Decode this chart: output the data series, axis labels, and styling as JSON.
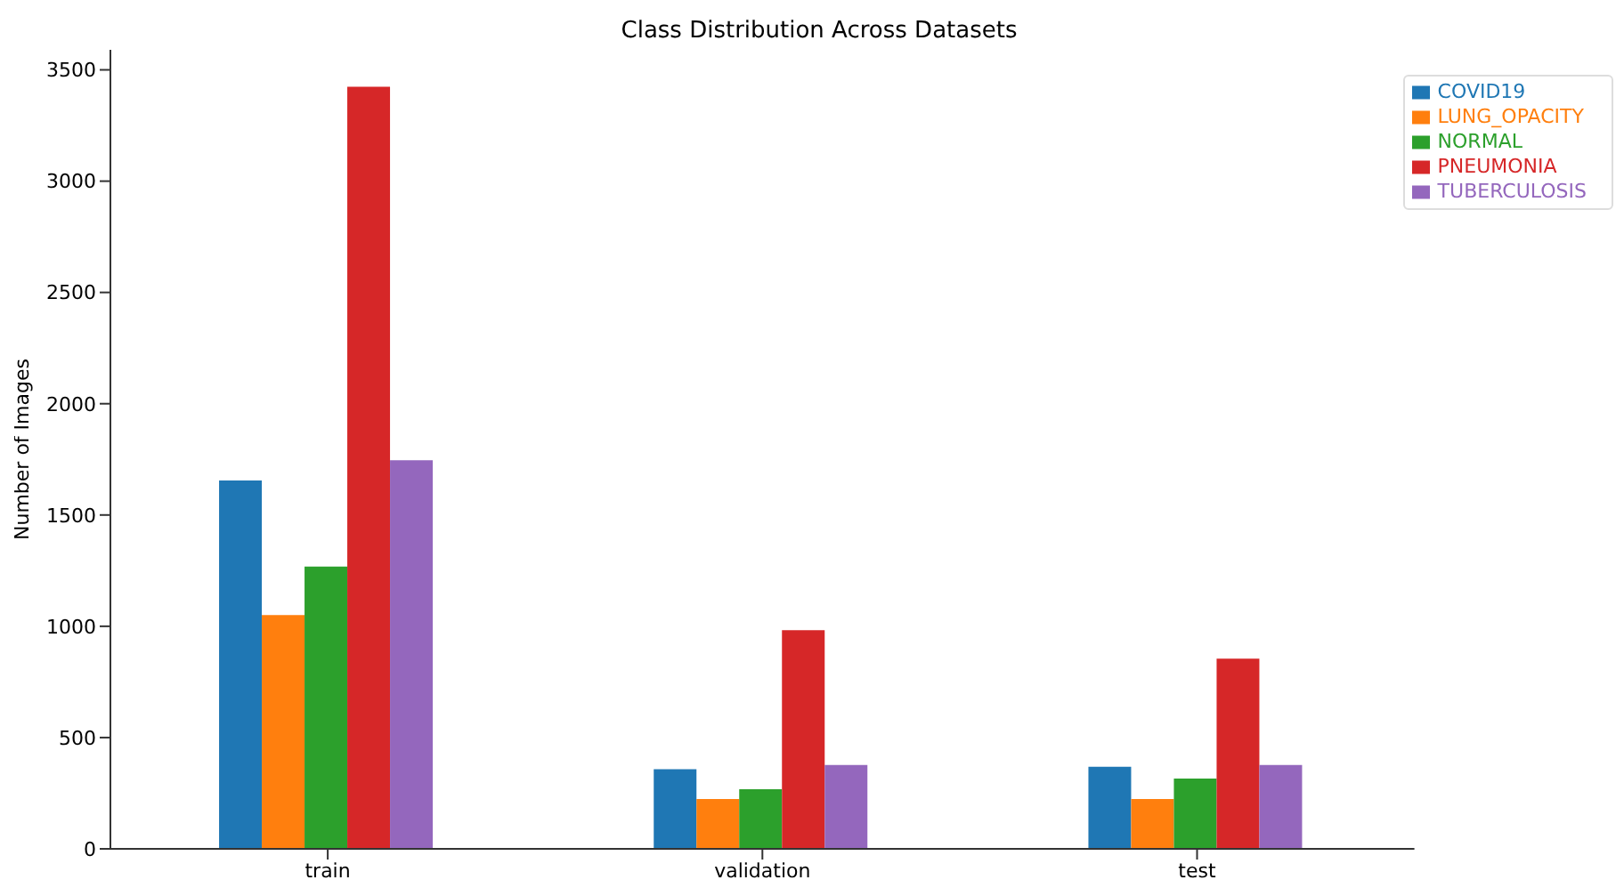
{
  "chart_data": {
    "type": "bar",
    "title": "Class Distribution Across Datasets",
    "ylabel": "Number of Images",
    "categories": [
      "train",
      "validation",
      "test"
    ],
    "series": [
      {
        "name": "COVID19",
        "color": "#1f77b4",
        "values": [
          1655,
          358,
          369
        ]
      },
      {
        "name": "LUNG_OPACITY",
        "color": "#ff7f0e",
        "values": [
          1050,
          224,
          224
        ]
      },
      {
        "name": "NORMAL",
        "color": "#2ca02c",
        "values": [
          1268,
          268,
          316
        ]
      },
      {
        "name": "PNEUMONIA",
        "color": "#d62728",
        "values": [
          3424,
          982,
          855
        ]
      },
      {
        "name": "TUBERCULOSIS",
        "color": "#9467bd",
        "values": [
          1746,
          377,
          377
        ]
      }
    ],
    "ylim": [
      0,
      3590
    ],
    "yticks": [
      0,
      500,
      1000,
      1500,
      2000,
      2500,
      3000,
      3500
    ],
    "grid": false,
    "legend": "top right"
  }
}
